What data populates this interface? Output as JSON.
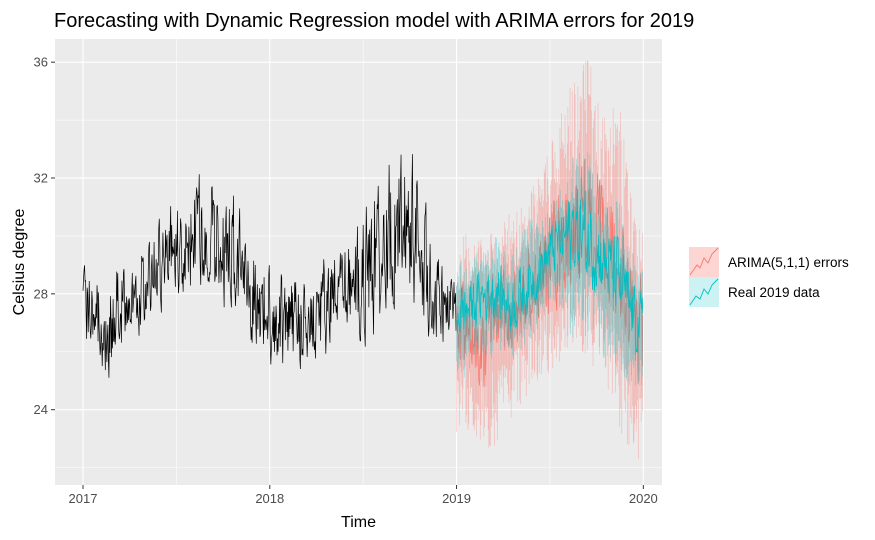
{
  "chart_data": {
    "type": "line",
    "title": "Forecasting with Dynamic Regression model with ARIMA errors for 2019",
    "xlabel": "Time",
    "ylabel": "Celsius degree",
    "xlim": [
      2016.85,
      2020.1
    ],
    "ylim": [
      21.4,
      36.8
    ],
    "x_ticks": [
      {
        "value": 2017,
        "label": "2017"
      },
      {
        "value": 2018,
        "label": "2018"
      },
      {
        "value": 2019,
        "label": "2019"
      },
      {
        "value": 2020,
        "label": "2020"
      }
    ],
    "y_ticks": [
      {
        "value": 24,
        "label": "24"
      },
      {
        "value": 28,
        "label": "28"
      },
      {
        "value": 32,
        "label": "32"
      },
      {
        "value": 36,
        "label": "36"
      }
    ],
    "grid": true,
    "legend_position": "right",
    "colors": {
      "panel_bg": "#ebebeb",
      "grid": "#ffffff",
      "history": "#000000",
      "forecast": "#f8766d",
      "real": "#00bfc4"
    },
    "series": [
      {
        "x": [
          "2017-01",
          "2017-02",
          "2017-03",
          "2017-04",
          "2017-05",
          "2017-06",
          "2017-07",
          "2017-08",
          "2017-09",
          "2017-10",
          "2017-11",
          "2017-12",
          "2018-01",
          "2018-02",
          "2018-03",
          "2018-04",
          "2018-05",
          "2018-06",
          "2018-07",
          "2018-08",
          "2018-09",
          "2018-10",
          "2018-11",
          "2018-12"
        ],
        "values": [
          27.3,
          26.7,
          27.6,
          27.9,
          28.8,
          29.4,
          29.6,
          30.2,
          29.6,
          29.4,
          28.6,
          27.5,
          27.2,
          26.9,
          27.1,
          27.6,
          27.8,
          28.4,
          29.1,
          30.0,
          30.4,
          30.0,
          27.9,
          27.3
        ],
        "range_min": [
          25.4,
          24.3,
          24.7,
          25.8,
          26.3,
          25.8,
          26.3,
          26.8,
          26.0,
          24.8,
          25.0,
          24.4,
          24.6,
          24.6,
          24.9,
          24.5,
          25.2,
          25.0,
          24.8,
          24.7,
          25.8,
          25.4,
          24.8,
          25.4
        ],
        "range_max": [
          29.9,
          29.7,
          29.8,
          29.9,
          30.7,
          31.0,
          31.3,
          32.8,
          32.6,
          31.8,
          30.6,
          30.3,
          29.8,
          29.7,
          29.9,
          30.1,
          30.2,
          31.3,
          32.5,
          32.8,
          33.5,
          33.2,
          29.7,
          29.2
        ]
      },
      {
        "name": "ARIMA(5,1,1) errors",
        "x": [
          "2019-01",
          "2019-02",
          "2019-03",
          "2019-04",
          "2019-05",
          "2019-06",
          "2019-07",
          "2019-08",
          "2019-09",
          "2019-10",
          "2019-11",
          "2019-12"
        ],
        "values": [
          26.8,
          26.3,
          26.9,
          27.2,
          27.9,
          28.7,
          29.6,
          30.3,
          30.4,
          29.4,
          28.2,
          26.8
        ],
        "range_min": [
          23.2,
          22.7,
          22.6,
          23.6,
          24.4,
          25.0,
          25.6,
          26.2,
          25.8,
          24.6,
          23.3,
          22.1
        ],
        "range_max": [
          30.3,
          29.9,
          30.5,
          30.8,
          31.6,
          32.4,
          33.9,
          35.7,
          36.2,
          34.4,
          34.5,
          30.4
        ]
      },
      {
        "name": "Real 2019 data",
        "x": [
          "2019-01",
          "2019-02",
          "2019-03",
          "2019-04",
          "2019-05",
          "2019-06",
          "2019-07",
          "2019-08",
          "2019-09",
          "2019-10",
          "2019-11",
          "2019-12"
        ],
        "values": [
          27.4,
          27.9,
          28.1,
          27.6,
          28.2,
          29.0,
          29.8,
          30.2,
          29.9,
          29.1,
          28.4,
          27.0
        ],
        "range_min": [
          25.1,
          25.8,
          25.6,
          25.6,
          26.3,
          27.0,
          27.6,
          26.1,
          26.6,
          25.7,
          25.1,
          24.8
        ],
        "range_max": [
          29.3,
          29.5,
          30.1,
          29.6,
          30.6,
          30.8,
          31.4,
          32.8,
          33.1,
          31.2,
          31.2,
          29.1
        ]
      }
    ]
  }
}
